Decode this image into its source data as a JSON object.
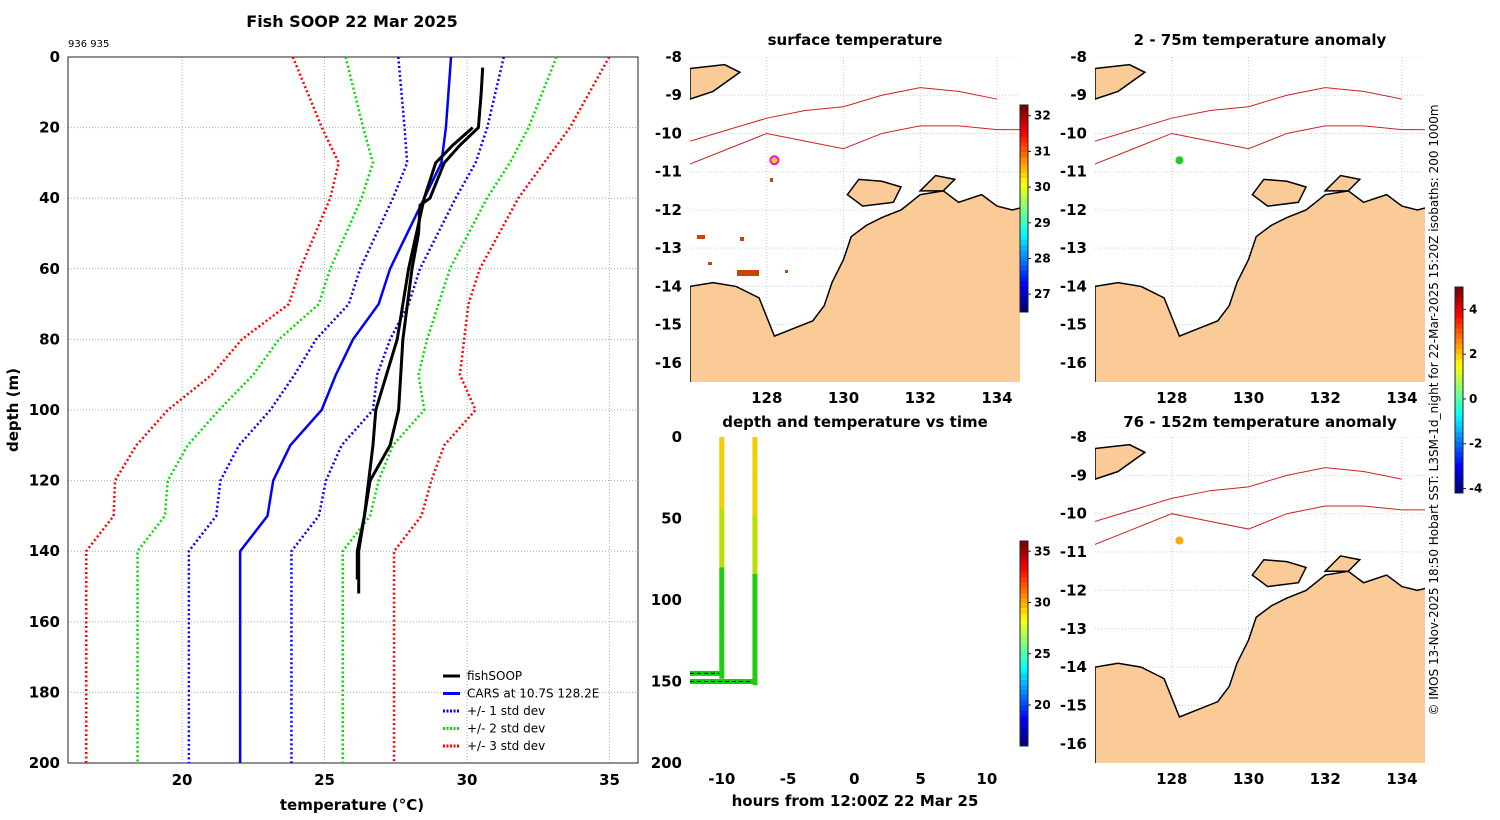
{
  "chart_data": [
    {
      "type": "line",
      "title": "Fish SOOP 22 Mar 2025",
      "corner_label": "936 935",
      "xlabel": "temperature (°C)",
      "ylabel": "depth (m)",
      "xlim": [
        16,
        36
      ],
      "ylim": [
        0,
        200
      ],
      "xticks": [
        20,
        25,
        30,
        35
      ],
      "yticks": [
        0,
        20,
        40,
        60,
        80,
        100,
        120,
        140,
        160,
        180,
        200
      ],
      "grid": true,
      "legend_position": "bottom-right",
      "legend": [
        "fishSOOP",
        "CARS at 10.7S 128.2E",
        "+/- 1 std dev",
        "+/- 2 std dev",
        "+/- 3 std dev"
      ],
      "colors": {
        "fishsoop": "#000000",
        "cars": "#0000ff",
        "std1": "#0000ff",
        "std2": "#00dd00",
        "std3": "#ff0000"
      },
      "cars": {
        "depth": [
          0,
          20,
          30,
          40,
          60,
          70,
          80,
          90,
          100,
          110,
          120,
          130,
          140,
          200
        ],
        "temp": [
          29.44,
          29.26,
          29.1,
          28.5,
          27.3,
          26.9,
          26.0,
          25.4,
          24.9,
          23.8,
          23.2,
          23.0,
          22.04,
          22.04
        ],
        "std": [
          1.85,
          1.45,
          1.2,
          1.1,
          1.05,
          1.05,
          1.3,
          1.45,
          1.8,
          1.8,
          1.85,
          1.8,
          1.8,
          1.8
        ]
      },
      "fishsoop": [
        {
          "depth": [
            3,
            10,
            20,
            25,
            30,
            40,
            42,
            50,
            60,
            80,
            100,
            110,
            120,
            130,
            140,
            152
          ],
          "temp": [
            30.55,
            30.5,
            30.4,
            29.75,
            29.2,
            28.7,
            28.35,
            28.3,
            28.07,
            27.75,
            27.6,
            27.3,
            26.6,
            26.4,
            26.2,
            26.2
          ]
        },
        {
          "depth": [
            20,
            25,
            30,
            40,
            60,
            80,
            100,
            110,
            120,
            130,
            140,
            148
          ],
          "temp": [
            30.2,
            29.5,
            28.9,
            28.5,
            27.95,
            27.55,
            26.8,
            26.7,
            26.55,
            26.4,
            26.15,
            26.15
          ]
        }
      ]
    },
    {
      "type": "map",
      "title": "surface temperature",
      "lon_ticks": [
        128,
        130,
        132,
        134
      ],
      "lat_ticks": [
        -8,
        -9,
        -10,
        -11,
        -12,
        -13,
        -14,
        -15,
        -16
      ],
      "marker": {
        "lon": 128.2,
        "lat": -10.7,
        "color": "#ffdd00",
        "ring": "#ff00ff"
      },
      "colorbar": {
        "min": 26.5,
        "max": 32.3,
        "ticks": [
          27,
          28,
          29,
          30,
          31,
          32
        ]
      }
    },
    {
      "type": "scatter",
      "title": "depth and temperature vs time",
      "xlabel": "hours from 12:00Z 22 Mar 25",
      "xlim": [
        -12.4,
        12.5
      ],
      "ylim": [
        0,
        200
      ],
      "xticks": [
        -10,
        -5,
        0,
        5,
        10
      ],
      "yticks": [
        0,
        50,
        100,
        150,
        200
      ],
      "tracks": [
        {
          "hours": -10,
          "max_depth": 145
        },
        {
          "hours": -7.5,
          "max_depth": 150
        }
      ],
      "colorbar": {
        "min": 16,
        "max": 36,
        "ticks": [
          20,
          25,
          30,
          35
        ]
      }
    },
    {
      "type": "map",
      "title": "2 - 75m temperature anomaly",
      "lon_ticks": [
        128,
        130,
        132,
        134
      ],
      "lat_ticks": [
        -8,
        -9,
        -10,
        -11,
        -12,
        -13,
        -14,
        -15,
        -16
      ],
      "marker": {
        "lon": 128.2,
        "lat": -10.7,
        "color": "#22cc22"
      }
    },
    {
      "type": "map",
      "title": "76 - 152m temperature anomaly",
      "lon_ticks": [
        128,
        130,
        132,
        134
      ],
      "lat_ticks": [
        -8,
        -9,
        -10,
        -11,
        -12,
        -13,
        -14,
        -15,
        -16
      ],
      "marker": {
        "lon": 128.2,
        "lat": -10.7,
        "color": "#ffaa00"
      },
      "colorbar": {
        "min": -4.2,
        "max": 5,
        "ticks": [
          -4,
          -2,
          0,
          2,
          4
        ]
      }
    }
  ],
  "credit": "© IMOS 13-Nov-2025 18:50 Hobart SST: L3SM-1d_night for 22-Mar-2025 15:20Z isobaths: 200  1000m"
}
